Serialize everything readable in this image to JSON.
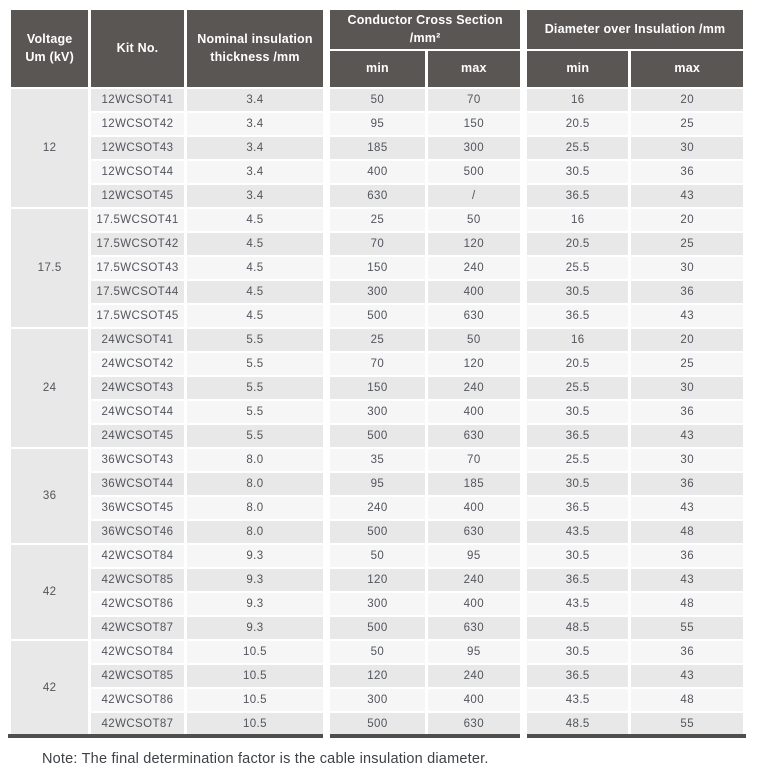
{
  "table": {
    "headers": {
      "voltage": "Voltage\nUm (kV)",
      "kit_no": "Kit No.",
      "thickness": "Nominal insulation\nthickness /mm",
      "conductor_group": "Conductor Cross Section /mm²",
      "diameter_group": "Diameter over Insulation /mm",
      "ccs_min": "min",
      "ccs_max": "max",
      "dia_min": "min",
      "dia_max": "max"
    },
    "groups": [
      {
        "voltage": "12",
        "rows": [
          {
            "kit_no": "12WCSOT41",
            "thickness": "3.4",
            "ccs_min": "50",
            "ccs_max": "70",
            "dia_min": "16",
            "dia_max": "20"
          },
          {
            "kit_no": "12WCSOT42",
            "thickness": "3.4",
            "ccs_min": "95",
            "ccs_max": "150",
            "dia_min": "20.5",
            "dia_max": "25"
          },
          {
            "kit_no": "12WCSOT43",
            "thickness": "3.4",
            "ccs_min": "185",
            "ccs_max": "300",
            "dia_min": "25.5",
            "dia_max": "30"
          },
          {
            "kit_no": "12WCSOT44",
            "thickness": "3.4",
            "ccs_min": "400",
            "ccs_max": "500",
            "dia_min": "30.5",
            "dia_max": "36"
          },
          {
            "kit_no": "12WCSOT45",
            "thickness": "3.4",
            "ccs_min": "630",
            "ccs_max": "/",
            "dia_min": "36.5",
            "dia_max": "43"
          }
        ]
      },
      {
        "voltage": "17.5",
        "rows": [
          {
            "kit_no": "17.5WCSOT41",
            "thickness": "4.5",
            "ccs_min": "25",
            "ccs_max": "50",
            "dia_min": "16",
            "dia_max": "20"
          },
          {
            "kit_no": "17.5WCSOT42",
            "thickness": "4.5",
            "ccs_min": "70",
            "ccs_max": "120",
            "dia_min": "20.5",
            "dia_max": "25"
          },
          {
            "kit_no": "17.5WCSOT43",
            "thickness": "4.5",
            "ccs_min": "150",
            "ccs_max": "240",
            "dia_min": "25.5",
            "dia_max": "30"
          },
          {
            "kit_no": "17.5WCSOT44",
            "thickness": "4.5",
            "ccs_min": "300",
            "ccs_max": "400",
            "dia_min": "30.5",
            "dia_max": "36"
          },
          {
            "kit_no": "17.5WCSOT45",
            "thickness": "4.5",
            "ccs_min": "500",
            "ccs_max": "630",
            "dia_min": "36.5",
            "dia_max": "43"
          }
        ]
      },
      {
        "voltage": "24",
        "rows": [
          {
            "kit_no": "24WCSOT41",
            "thickness": "5.5",
            "ccs_min": "25",
            "ccs_max": "50",
            "dia_min": "16",
            "dia_max": "20"
          },
          {
            "kit_no": "24WCSOT42",
            "thickness": "5.5",
            "ccs_min": "70",
            "ccs_max": "120",
            "dia_min": "20.5",
            "dia_max": "25"
          },
          {
            "kit_no": "24WCSOT43",
            "thickness": "5.5",
            "ccs_min": "150",
            "ccs_max": "240",
            "dia_min": "25.5",
            "dia_max": "30"
          },
          {
            "kit_no": "24WCSOT44",
            "thickness": "5.5",
            "ccs_min": "300",
            "ccs_max": "400",
            "dia_min": "30.5",
            "dia_max": "36"
          },
          {
            "kit_no": "24WCSOT45",
            "thickness": "5.5",
            "ccs_min": "500",
            "ccs_max": "630",
            "dia_min": "36.5",
            "dia_max": "43"
          }
        ]
      },
      {
        "voltage": "36",
        "rows": [
          {
            "kit_no": "36WCSOT43",
            "thickness": "8.0",
            "ccs_min": "35",
            "ccs_max": "70",
            "dia_min": "25.5",
            "dia_max": "30"
          },
          {
            "kit_no": "36WCSOT44",
            "thickness": "8.0",
            "ccs_min": "95",
            "ccs_max": "185",
            "dia_min": "30.5",
            "dia_max": "36"
          },
          {
            "kit_no": "36WCSOT45",
            "thickness": "8.0",
            "ccs_min": "240",
            "ccs_max": "400",
            "dia_min": "36.5",
            "dia_max": "43"
          },
          {
            "kit_no": "36WCSOT46",
            "thickness": "8.0",
            "ccs_min": "500",
            "ccs_max": "630",
            "dia_min": "43.5",
            "dia_max": "48"
          }
        ]
      },
      {
        "voltage": "42",
        "rows": [
          {
            "kit_no": "42WCSOT84",
            "thickness": "9.3",
            "ccs_min": "50",
            "ccs_max": "95",
            "dia_min": "30.5",
            "dia_max": "36"
          },
          {
            "kit_no": "42WCSOT85",
            "thickness": "9.3",
            "ccs_min": "120",
            "ccs_max": "240",
            "dia_min": "36.5",
            "dia_max": "43"
          },
          {
            "kit_no": "42WCSOT86",
            "thickness": "9.3",
            "ccs_min": "300",
            "ccs_max": "400",
            "dia_min": "43.5",
            "dia_max": "48"
          },
          {
            "kit_no": "42WCSOT87",
            "thickness": "9.3",
            "ccs_min": "500",
            "ccs_max": "630",
            "dia_min": "48.5",
            "dia_max": "55"
          }
        ]
      },
      {
        "voltage": "42",
        "rows": [
          {
            "kit_no": "42WCSOT84",
            "thickness": "10.5",
            "ccs_min": "50",
            "ccs_max": "95",
            "dia_min": "30.5",
            "dia_max": "36"
          },
          {
            "kit_no": "42WCSOT85",
            "thickness": "10.5",
            "ccs_min": "120",
            "ccs_max": "240",
            "dia_min": "36.5",
            "dia_max": "43"
          },
          {
            "kit_no": "42WCSOT86",
            "thickness": "10.5",
            "ccs_min": "300",
            "ccs_max": "400",
            "dia_min": "43.5",
            "dia_max": "48"
          },
          {
            "kit_no": "42WCSOT87",
            "thickness": "10.5",
            "ccs_min": "500",
            "ccs_max": "630",
            "dia_min": "48.5",
            "dia_max": "55"
          }
        ]
      }
    ]
  },
  "note": "Note: The final determination factor is the cable insulation diameter.",
  "colors": {
    "header_bg": "#5a5653",
    "row_dark": "#e9e8e8",
    "row_light": "#f7f6f6",
    "bottom_rule": "#504d4a"
  }
}
